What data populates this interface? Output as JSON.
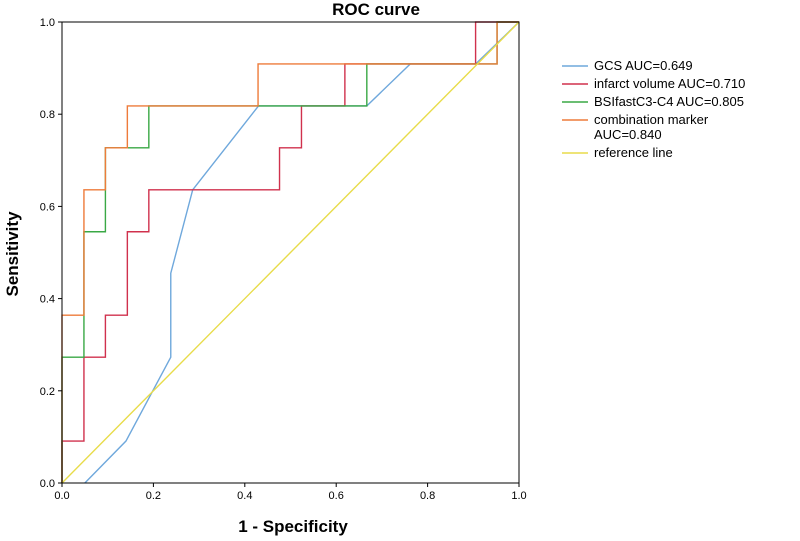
{
  "chart_data": {
    "type": "line",
    "title": "ROC curve",
    "xlabel": "1 - Specificity",
    "ylabel": "Sensitivity",
    "xlim": [
      0,
      1
    ],
    "ylim": [
      0,
      1
    ],
    "xticks": [
      "0.0",
      "0.2",
      "0.4",
      "0.6",
      "0.8",
      "1.0"
    ],
    "yticks": [
      "0.0",
      "0.2",
      "0.4",
      "0.6",
      "0.8",
      "1.0"
    ],
    "grid": false,
    "legend_position": "right",
    "series": [
      {
        "name": "GCS AUC=0.649",
        "color": "#6fa8dc",
        "x": [
          0.05,
          0.14,
          0.238,
          0.238,
          0.286,
          0.43,
          0.667,
          0.762,
          0.905,
          1.0
        ],
        "y": [
          0.0,
          0.091,
          0.273,
          0.455,
          0.636,
          0.818,
          0.818,
          0.909,
          0.909,
          1.0
        ]
      },
      {
        "name": "infarct volume AUC=0.710",
        "color": "#d0314d",
        "x": [
          0.0,
          0.0,
          0.048,
          0.048,
          0.095,
          0.095,
          0.143,
          0.143,
          0.19,
          0.19,
          0.476,
          0.476,
          0.524,
          0.524,
          0.619,
          0.619,
          0.905,
          0.905,
          1.0
        ],
        "y": [
          0.0,
          0.091,
          0.091,
          0.273,
          0.273,
          0.364,
          0.364,
          0.545,
          0.545,
          0.636,
          0.636,
          0.727,
          0.727,
          0.818,
          0.818,
          0.909,
          0.909,
          1.0,
          1.0
        ]
      },
      {
        "name": "BSIfastC3-C4 AUC=0.805",
        "color": "#3aa845",
        "x": [
          0.0,
          0.0,
          0.048,
          0.048,
          0.095,
          0.095,
          0.19,
          0.19,
          0.667,
          0.667,
          0.952,
          0.952,
          1.0
        ],
        "y": [
          0.0,
          0.273,
          0.273,
          0.545,
          0.545,
          0.727,
          0.727,
          0.818,
          0.818,
          0.909,
          0.909,
          1.0,
          1.0
        ]
      },
      {
        "name": "combination marker AUC=0.840",
        "name_lines": [
          "combination marker",
          "AUC=0.840"
        ],
        "color": "#ee7b3a",
        "x": [
          0.0,
          0.0,
          0.048,
          0.048,
          0.095,
          0.095,
          0.143,
          0.143,
          0.429,
          0.429,
          0.952,
          0.952,
          1.0
        ],
        "y": [
          0.0,
          0.364,
          0.364,
          0.636,
          0.636,
          0.727,
          0.727,
          0.818,
          0.818,
          0.909,
          0.909,
          1.0,
          1.0
        ]
      },
      {
        "name": "reference line",
        "color": "#e8dc4a",
        "x": [
          0,
          1
        ],
        "y": [
          0,
          1
        ]
      }
    ]
  }
}
